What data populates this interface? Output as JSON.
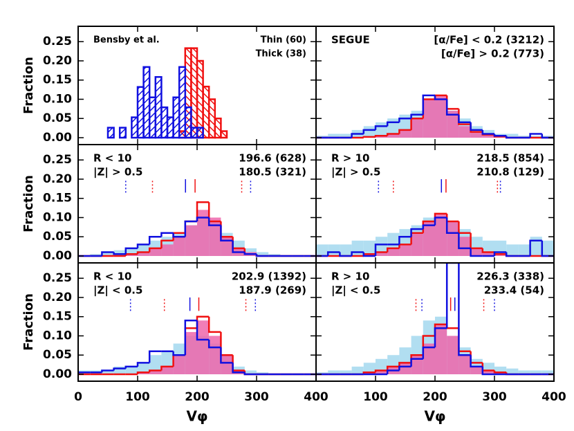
{
  "chart_data": [
    {
      "type": "histogram",
      "bins": [
        40,
        50,
        60,
        70,
        80,
        90,
        100,
        110,
        120,
        130,
        140,
        150,
        160,
        170,
        180,
        190,
        200,
        210,
        220,
        230,
        240,
        250
      ],
      "xlim": [
        0,
        400
      ],
      "ylim": [
        -0.018,
        0.29
      ],
      "xticks": [
        0,
        100,
        200,
        300,
        400
      ],
      "show_xtick_labels": false,
      "yticks": [
        {
          "value": 0,
          "label": "0.00"
        },
        {
          "value": 0.05,
          "label": "0.05"
        },
        {
          "value": 0.1,
          "label": "0.10"
        },
        {
          "value": 0.15,
          "label": "0.15"
        },
        {
          "value": 0.2,
          "label": "0.20"
        },
        {
          "value": 0.25,
          "label": "0.25"
        }
      ],
      "show_ytick_labels": true,
      "ylabel": "Fraction",
      "labels_left": [
        "Bensby et al."
      ],
      "series": [
        {
          "name": "Thin (60)",
          "color": "#f01010",
          "style": "hatch",
          "hatch": "\\",
          "values": [
            0,
            0,
            0,
            0,
            0,
            0,
            0,
            0,
            0,
            0,
            0,
            0,
            0,
            0.017,
            0.233,
            0.233,
            0.2,
            0.133,
            0.1,
            0.05,
            0.017
          ]
        },
        {
          "name": "Thick (38)",
          "color": "#1010e0",
          "style": "hatch",
          "hatch": "/",
          "values": [
            0,
            0.026,
            0,
            0.026,
            0,
            0.053,
            0.132,
            0.184,
            0.105,
            0.158,
            0.079,
            0.053,
            0.105,
            0.184,
            0.079,
            0.026,
            0.026,
            0,
            0,
            0,
            0
          ]
        }
      ],
      "vlines": []
    },
    {
      "type": "histogram",
      "bins": [
        0,
        20,
        40,
        60,
        80,
        100,
        120,
        140,
        160,
        180,
        200,
        220,
        240,
        260,
        280,
        300,
        320,
        340,
        360,
        380,
        400
      ],
      "xlim": [
        0,
        400
      ],
      "ylim": [
        -0.018,
        0.29
      ],
      "xticks": [
        0,
        100,
        200,
        300,
        400
      ],
      "show_xtick_labels": false,
      "yticks": [
        0,
        0.05,
        0.1,
        0.15,
        0.2,
        0.25
      ],
      "show_ytick_labels": false,
      "labels_left": [
        "SEGUE"
      ],
      "series": [
        {
          "color": "#a3d8ee",
          "style": "fill",
          "values": [
            0.005,
            0.01,
            0.01,
            0.02,
            0.03,
            0.04,
            0.05,
            0.06,
            0.07,
            0.1,
            0.1,
            0.07,
            0.05,
            0.03,
            0.02,
            0.01,
            0.01,
            0.005,
            0.005,
            0.005
          ]
        },
        {
          "color": "#ee66aa",
          "style": "fill",
          "values": [
            0,
            0,
            0,
            0,
            0.003,
            0.005,
            0.01,
            0.02,
            0.05,
            0.1,
            0.11,
            0.07,
            0.03,
            0.015,
            0.008,
            0.003,
            0,
            0,
            0,
            0
          ]
        },
        {
          "name": "[α/Fe] < 0.2 (3212)",
          "color": "#f01010",
          "style": "step",
          "values": [
            0,
            0,
            0,
            0,
            0.002,
            0.005,
            0.01,
            0.02,
            0.05,
            0.1,
            0.11,
            0.075,
            0.035,
            0.015,
            0.008,
            0.003,
            0,
            0,
            0,
            0
          ]
        },
        {
          "name": "[α/Fe] > 0.2 (773)",
          "color": "#1010e0",
          "style": "step",
          "values": [
            0,
            0,
            0,
            0.01,
            0.02,
            0.03,
            0.04,
            0.05,
            0.06,
            0.11,
            0.1,
            0.06,
            0.04,
            0.02,
            0.01,
            0.005,
            0,
            0,
            0.01,
            0
          ]
        }
      ],
      "vlines": []
    },
    {
      "type": "histogram",
      "bins": [
        0,
        20,
        40,
        60,
        80,
        100,
        120,
        140,
        160,
        180,
        200,
        220,
        240,
        260,
        280,
        300,
        320,
        340,
        360,
        380,
        400
      ],
      "xlim": [
        0,
        400
      ],
      "ylim": [
        -0.018,
        0.29
      ],
      "xticks": [
        0,
        100,
        200,
        300,
        400
      ],
      "show_xtick_labels": false,
      "yticks": [
        {
          "value": 0,
          "label": "0.00"
        },
        {
          "value": 0.05,
          "label": "0.05"
        },
        {
          "value": 0.1,
          "label": "0.10"
        },
        {
          "value": 0.15,
          "label": "0.15"
        },
        {
          "value": 0.2,
          "label": "0.20"
        },
        {
          "value": 0.25,
          "label": "0.25"
        }
      ],
      "show_ytick_labels": true,
      "ylabel": "Fraction",
      "labels_left": [
        "R < 10",
        "|Z| > 0.5"
      ],
      "series": [
        {
          "color": "#a3d8ee",
          "style": "fill",
          "values": [
            0,
            0.005,
            0.01,
            0.015,
            0.02,
            0.03,
            0.04,
            0.05,
            0.06,
            0.08,
            0.1,
            0.09,
            0.06,
            0.04,
            0.02,
            0.01,
            0.005,
            0,
            0,
            0
          ]
        },
        {
          "color": "#ee66aa",
          "style": "fill",
          "values": [
            0,
            0,
            0,
            0,
            0.005,
            0.01,
            0.02,
            0.03,
            0.05,
            0.08,
            0.12,
            0.1,
            0.05,
            0.02,
            0.01,
            0,
            0,
            0,
            0,
            0
          ]
        },
        {
          "name": "196.6 (628)",
          "color": "#f01010",
          "style": "step",
          "values": [
            0,
            0,
            0,
            0,
            0.005,
            0.01,
            0.02,
            0.04,
            0.06,
            0.09,
            0.14,
            0.09,
            0.05,
            0.02,
            0.005,
            0,
            0,
            0,
            0,
            0
          ]
        },
        {
          "name": "180.5 (321)",
          "color": "#1010e0",
          "style": "step",
          "values": [
            0,
            0,
            0.01,
            0.005,
            0.02,
            0.03,
            0.05,
            0.06,
            0.05,
            0.09,
            0.1,
            0.08,
            0.04,
            0.01,
            0.005,
            0,
            0,
            0,
            0,
            0
          ]
        }
      ],
      "vlines": [
        {
          "x": 80,
          "color": "#1010e0",
          "style": "dotted"
        },
        {
          "x": 290,
          "color": "#1010e0",
          "style": "dotted"
        },
        {
          "x": 125,
          "color": "#f01010",
          "style": "dotted"
        },
        {
          "x": 275,
          "color": "#f01010",
          "style": "dotted"
        },
        {
          "x": 180.5,
          "color": "#1010e0",
          "style": "solid"
        },
        {
          "x": 196.6,
          "color": "#f01010",
          "style": "solid"
        }
      ]
    },
    {
      "type": "histogram",
      "bins": [
        0,
        20,
        40,
        60,
        80,
        100,
        120,
        140,
        160,
        180,
        200,
        220,
        240,
        260,
        280,
        300,
        320,
        340,
        360,
        380,
        400
      ],
      "xlim": [
        0,
        400
      ],
      "ylim": [
        -0.018,
        0.29
      ],
      "xticks": [
        0,
        100,
        200,
        300,
        400
      ],
      "show_xtick_labels": false,
      "yticks": [
        0,
        0.05,
        0.1,
        0.15,
        0.2,
        0.25
      ],
      "show_ytick_labels": false,
      "labels_left": [
        "R > 10",
        "|Z| > 0.5"
      ],
      "series": [
        {
          "color": "#a3d8ee",
          "style": "fill",
          "values": [
            0.03,
            0.03,
            0.03,
            0.04,
            0.04,
            0.05,
            0.06,
            0.07,
            0.08,
            0.1,
            0.1,
            0.09,
            0.07,
            0.05,
            0.04,
            0.04,
            0.03,
            0.03,
            0.05,
            0.04
          ]
        },
        {
          "color": "#ee66aa",
          "style": "fill",
          "values": [
            0,
            0,
            0,
            0,
            0.005,
            0.01,
            0.02,
            0.03,
            0.06,
            0.09,
            0.11,
            0.09,
            0.05,
            0.02,
            0.01,
            0.005,
            0,
            0,
            0,
            0
          ]
        },
        {
          "name": "218.5 (854)",
          "color": "#f01010",
          "style": "step",
          "values": [
            0,
            0,
            0,
            0,
            0.005,
            0.01,
            0.02,
            0.03,
            0.06,
            0.09,
            0.11,
            0.09,
            0.06,
            0.02,
            0.01,
            0.005,
            0,
            0,
            0,
            0
          ]
        },
        {
          "name": "210.8 (129)",
          "color": "#1010e0",
          "style": "step",
          "values": [
            0,
            0.01,
            0,
            0.01,
            0,
            0.03,
            0.03,
            0.05,
            0.07,
            0.08,
            0.1,
            0.06,
            0.02,
            0,
            0,
            0.01,
            0,
            0,
            0.04,
            0
          ]
        }
      ],
      "vlines": [
        {
          "x": 105,
          "color": "#1010e0",
          "style": "dotted"
        },
        {
          "x": 310,
          "color": "#1010e0",
          "style": "dotted"
        },
        {
          "x": 130,
          "color": "#f01010",
          "style": "dotted"
        },
        {
          "x": 305,
          "color": "#f01010",
          "style": "dotted"
        },
        {
          "x": 210.8,
          "color": "#1010e0",
          "style": "solid"
        },
        {
          "x": 218.5,
          "color": "#f01010",
          "style": "solid"
        }
      ]
    },
    {
      "type": "histogram",
      "bins": [
        0,
        20,
        40,
        60,
        80,
        100,
        120,
        140,
        160,
        180,
        200,
        220,
        240,
        260,
        280,
        300,
        320,
        340,
        360,
        380,
        400
      ],
      "xlim": [
        0,
        400
      ],
      "ylim": [
        -0.018,
        0.29
      ],
      "xticks": [
        0,
        100,
        200,
        300,
        400
      ],
      "show_xtick_labels": true,
      "xlabel": "Vφ",
      "yticks": [
        {
          "value": 0,
          "label": "0.00"
        },
        {
          "value": 0.05,
          "label": "0.05"
        },
        {
          "value": 0.1,
          "label": "0.10"
        },
        {
          "value": 0.15,
          "label": "0.15"
        },
        {
          "value": 0.2,
          "label": "0.20"
        },
        {
          "value": 0.25,
          "label": "0.25"
        }
      ],
      "show_ytick_labels": true,
      "ylabel": "Fraction",
      "labels_left": [
        "R < 10",
        "|Z| < 0.5"
      ],
      "series": [
        {
          "color": "#a3d8ee",
          "style": "fill",
          "values": [
            0.01,
            0.01,
            0.01,
            0.02,
            0.02,
            0.03,
            0.05,
            0.06,
            0.08,
            0.1,
            0.1,
            0.08,
            0.05,
            0.02,
            0.01,
            0.005,
            0,
            0,
            0,
            0
          ]
        },
        {
          "color": "#ee66aa",
          "style": "fill",
          "values": [
            0,
            0,
            0,
            0,
            0,
            0.005,
            0.01,
            0.02,
            0.05,
            0.11,
            0.14,
            0.1,
            0.05,
            0.01,
            0,
            0,
            0,
            0,
            0,
            0
          ]
        },
        {
          "name": "202.9 (1392)",
          "color": "#f01010",
          "style": "step",
          "values": [
            0,
            0,
            0,
            0,
            0,
            0.005,
            0.01,
            0.02,
            0.05,
            0.12,
            0.15,
            0.11,
            0.05,
            0.01,
            0,
            0,
            0,
            0,
            0,
            0
          ]
        },
        {
          "name": "187.9 (269)",
          "color": "#1010e0",
          "style": "step",
          "values": [
            0.005,
            0.005,
            0.01,
            0.015,
            0.02,
            0.03,
            0.06,
            0.06,
            0.05,
            0.14,
            0.09,
            0.07,
            0.03,
            0.005,
            0,
            0,
            0,
            0,
            0,
            0
          ]
        }
      ],
      "vlines": [
        {
          "x": 88,
          "color": "#1010e0",
          "style": "dotted"
        },
        {
          "x": 298,
          "color": "#1010e0",
          "style": "dotted"
        },
        {
          "x": 145,
          "color": "#f01010",
          "style": "dotted"
        },
        {
          "x": 282,
          "color": "#f01010",
          "style": "dotted"
        },
        {
          "x": 187.9,
          "color": "#1010e0",
          "style": "solid"
        },
        {
          "x": 202.9,
          "color": "#f01010",
          "style": "solid"
        }
      ]
    },
    {
      "type": "histogram",
      "bins": [
        0,
        20,
        40,
        60,
        80,
        100,
        120,
        140,
        160,
        180,
        200,
        220,
        240,
        260,
        280,
        300,
        320,
        340,
        360,
        380,
        400
      ],
      "xlim": [
        0,
        400
      ],
      "ylim": [
        -0.018,
        0.29
      ],
      "xticks": [
        100,
        200,
        300,
        400
      ],
      "show_xtick_labels": true,
      "xlabel": "Vφ",
      "yticks": [
        0,
        0.05,
        0.1,
        0.15,
        0.2,
        0.25
      ],
      "show_ytick_labels": false,
      "labels_left": [
        "R > 10",
        "|Z| < 0.5"
      ],
      "series": [
        {
          "color": "#a3d8ee",
          "style": "fill",
          "values": [
            0.005,
            0.01,
            0.01,
            0.02,
            0.03,
            0.04,
            0.05,
            0.07,
            0.1,
            0.14,
            0.15,
            0.1,
            0.07,
            0.04,
            0.03,
            0.02,
            0.015,
            0.01,
            0.01,
            0.01
          ]
        },
        {
          "color": "#ee66aa",
          "style": "fill",
          "values": [
            0,
            0,
            0,
            0,
            0.005,
            0.01,
            0.02,
            0.03,
            0.05,
            0.08,
            0.13,
            0.1,
            0.05,
            0.02,
            0.01,
            0.005,
            0,
            0,
            0,
            0
          ]
        },
        {
          "name": "226.3 (338)",
          "color": "#f01010",
          "style": "step",
          "values": [
            0,
            0,
            0,
            0,
            0.005,
            0.01,
            0.02,
            0.03,
            0.05,
            0.1,
            0.13,
            0.12,
            0.06,
            0.03,
            0.01,
            0.005,
            0,
            0,
            0,
            0
          ]
        },
        {
          "name": "233.4 (54)",
          "color": "#1010e0",
          "style": "step",
          "values": [
            0,
            0,
            0,
            0,
            0,
            0,
            0.01,
            0.02,
            0.04,
            0.07,
            0.12,
            0.29,
            0.05,
            0.02,
            0,
            0,
            0,
            0,
            0,
            0
          ]
        }
      ],
      "vlines": [
        {
          "x": 168,
          "color": "#f01010",
          "style": "dotted"
        },
        {
          "x": 282,
          "color": "#f01010",
          "style": "dotted"
        },
        {
          "x": 178,
          "color": "#1010e0",
          "style": "dotted"
        },
        {
          "x": 300,
          "color": "#1010e0",
          "style": "dotted"
        },
        {
          "x": 233.4,
          "color": "#1010e0",
          "style": "solid"
        },
        {
          "x": 226.3,
          "color": "#f01010",
          "style": "solid"
        }
      ]
    }
  ]
}
